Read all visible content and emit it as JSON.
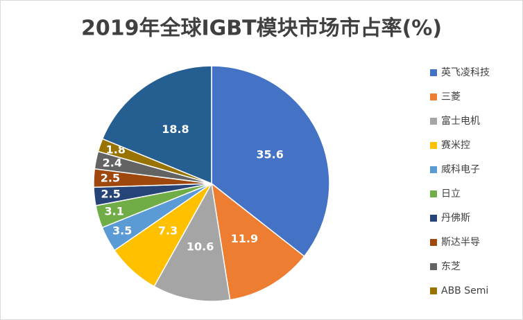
{
  "chart_data": {
    "type": "pie",
    "title": "2019年全球IGBT模块市场市占率(%)",
    "categories": [
      "英飞凌科技",
      "三菱",
      "富士电机",
      "赛米控",
      "威科电子",
      "日立",
      "丹佛斯",
      "斯达半导",
      "东芝",
      "ABB Semi",
      null
    ],
    "values": [
      35.6,
      11.9,
      10.6,
      7.3,
      3.5,
      3.1,
      2.5,
      2.5,
      2.4,
      1.8,
      18.8
    ],
    "colors": [
      "#4472c4",
      "#ed7d31",
      "#a5a5a5",
      "#ffc000",
      "#5b9bd5",
      "#70ad47",
      "#264478",
      "#9e480e",
      "#636363",
      "#997300",
      "#255e91"
    ],
    "legend": "right"
  }
}
